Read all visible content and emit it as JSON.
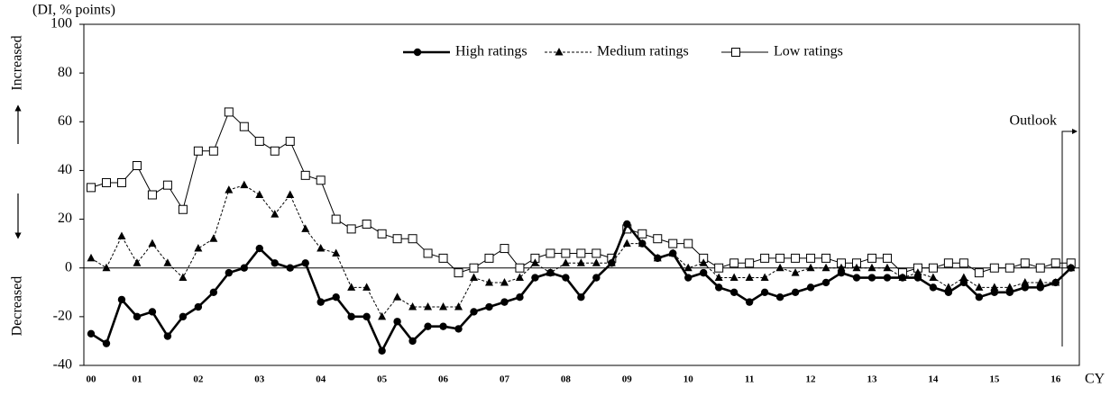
{
  "chart_data": {
    "type": "line",
    "y_label": "(DI, % points)",
    "up_label": "Increased",
    "down_label": "Decreased",
    "annotation": "Outlook",
    "x_unit": "CY",
    "categories": [
      "00",
      null,
      null,
      "01",
      null,
      null,
      null,
      "02",
      null,
      null,
      null,
      "03",
      null,
      null,
      null,
      "04",
      null,
      null,
      null,
      "05",
      null,
      null,
      null,
      "06",
      null,
      null,
      null,
      "07",
      null,
      null,
      null,
      "08",
      null,
      null,
      null,
      "09",
      null,
      null,
      null,
      "10",
      null,
      null,
      null,
      "11",
      null,
      null,
      null,
      "12",
      null,
      null,
      null,
      "13",
      null,
      null,
      null,
      "14",
      null,
      null,
      null,
      "15",
      null,
      null,
      null,
      "16",
      null
    ],
    "ylim": [
      -40,
      100
    ],
    "yticks": [
      -40,
      -20,
      0,
      20,
      40,
      60,
      80,
      100
    ],
    "series": [
      {
        "name": "High ratings",
        "color": "#000000",
        "marker": "circle",
        "line_style": "solid-thick",
        "values": [
          -27,
          -31,
          -13,
          -20,
          -18,
          -28,
          -20,
          -16,
          -10,
          -2,
          0,
          8,
          2,
          0,
          2,
          -14,
          -12,
          -20,
          -20,
          -34,
          -22,
          -30,
          -24,
          -24,
          -25,
          -18,
          -16,
          -14,
          -12,
          -4,
          -2,
          -4,
          -12,
          -4,
          2,
          18,
          10,
          4,
          6,
          -4,
          -2,
          -8,
          -10,
          -14,
          -10,
          -12,
          -10,
          -8,
          -6,
          -2,
          -4,
          -4,
          -4,
          -4,
          -4,
          -8,
          -10,
          -6,
          -12,
          -10,
          -10,
          -8,
          -8,
          -6,
          0
        ]
      },
      {
        "name": "Medium ratings",
        "color": "#000000",
        "marker": "triangle",
        "line_style": "dashed",
        "values": [
          4,
          0,
          13,
          2,
          10,
          2,
          -4,
          8,
          12,
          32,
          34,
          30,
          22,
          30,
          16,
          8,
          6,
          -8,
          -8,
          -20,
          -12,
          -16,
          -16,
          -16,
          -16,
          -4,
          -6,
          -6,
          -4,
          2,
          -2,
          2,
          2,
          2,
          2,
          10,
          10,
          4,
          6,
          0,
          2,
          -4,
          -4,
          -4,
          -4,
          0,
          -2,
          0,
          0,
          0,
          0,
          0,
          0,
          -4,
          -2,
          -4,
          -8,
          -4,
          -8,
          -8,
          -8,
          -6,
          -6,
          -6,
          0
        ]
      },
      {
        "name": "Low ratings",
        "color": "#000000",
        "marker": "square",
        "line_style": "solid-thin",
        "values": [
          33,
          35,
          35,
          42,
          30,
          34,
          24,
          48,
          48,
          64,
          58,
          52,
          48,
          52,
          38,
          36,
          20,
          16,
          18,
          14,
          12,
          12,
          6,
          4,
          -2,
          0,
          4,
          8,
          0,
          4,
          6,
          6,
          6,
          6,
          4,
          16,
          14,
          12,
          10,
          10,
          4,
          0,
          2,
          2,
          4,
          4,
          4,
          4,
          4,
          2,
          2,
          4,
          4,
          -2,
          0,
          0,
          2,
          2,
          -2,
          0,
          0,
          2,
          0,
          2,
          2
        ]
      }
    ]
  }
}
